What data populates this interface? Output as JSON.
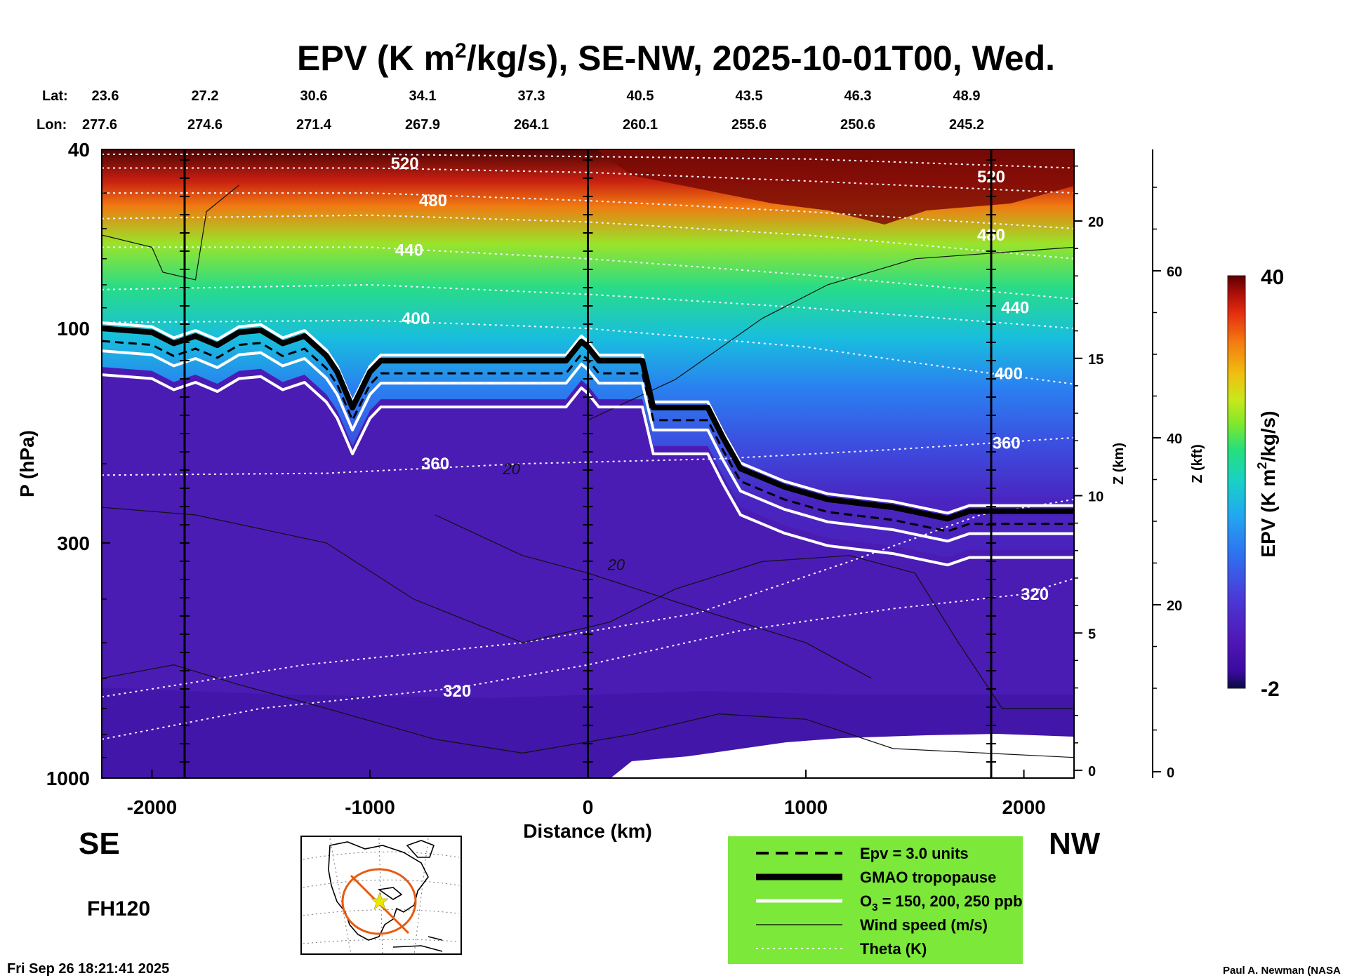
{
  "chart_data": {
    "type": "heatmap",
    "title_prefix": "EPV (K m",
    "title_sup": "2",
    "title_suffix": "/kg/s), SE-NW, 2025-10-01T00, Wed.",
    "lat_label": "Lat:",
    "lon_label": "Lon:",
    "lat": [
      "23.6",
      "27.2",
      "30.6",
      "34.1",
      "37.3",
      "40.5",
      "43.5",
      "46.3",
      "48.9"
    ],
    "lon": [
      "277.6",
      "274.6",
      "271.4",
      "267.9",
      "264.1",
      "260.1",
      "255.6",
      "250.6",
      "245.2"
    ],
    "xlabel": "Distance (km)",
    "ylabel": "P (hPa)",
    "xlim": [
      -2230,
      2230
    ],
    "ylim": [
      1000,
      40
    ],
    "yscale": "log",
    "x_ticks": [
      "-2000",
      "-1000",
      "0",
      "1000",
      "2000"
    ],
    "y_ticks": [
      "40",
      "100",
      "300",
      "1000"
    ],
    "z_km_label": "Z (km)",
    "z_km_ticks": [
      "0",
      "5",
      "10",
      "15",
      "20"
    ],
    "z_kft_label": "Z (kft)",
    "z_kft_ticks": [
      "0",
      "20",
      "40",
      "60"
    ],
    "colorbar": {
      "label_prefix": "EPV (K m",
      "label_sup": "2",
      "label_suffix": "/kg/s)",
      "min": "-2",
      "max": "40",
      "colors": [
        "#0a0a40",
        "#3a0aa0",
        "#5018b8",
        "#4a3ad8",
        "#2f6ff0",
        "#22a8f0",
        "#18d0c8",
        "#25e07a",
        "#7ee82c",
        "#c8e81a",
        "#f0c010",
        "#f47a10",
        "#e42c10",
        "#a80d08",
        "#5a0000"
      ]
    },
    "theta_levels": [
      {
        "value": "320",
        "x": -600,
        "p": 640
      },
      {
        "value": "320",
        "x": 2050,
        "p": 390
      },
      {
        "value": "360",
        "x": -700,
        "p": 200
      },
      {
        "value": "360",
        "x": 1920,
        "p": 180
      },
      {
        "value": "400",
        "x": -790,
        "p": 95
      },
      {
        "value": "400",
        "x": 1930,
        "p": 126
      },
      {
        "value": "440",
        "x": -820,
        "p": 67
      },
      {
        "value": "440",
        "x": 1960,
        "p": 90
      },
      {
        "value": "480",
        "x": -710,
        "p": 52
      },
      {
        "value": "480",
        "x": 1850,
        "p": 62
      },
      {
        "value": "520",
        "x": -840,
        "p": 43
      },
      {
        "value": "520",
        "x": 1850,
        "p": 46
      }
    ],
    "wind_labels": [
      {
        "value": "20",
        "x": -350,
        "p": 205
      },
      {
        "value": "20",
        "x": 130,
        "p": 335
      }
    ],
    "tropopause_p": [
      [
        -2230,
        100
      ],
      [
        -2000,
        102
      ],
      [
        -1900,
        108
      ],
      [
        -1800,
        104
      ],
      [
        -1700,
        109
      ],
      [
        -1600,
        102
      ],
      [
        -1500,
        101
      ],
      [
        -1400,
        108
      ],
      [
        -1300,
        104
      ],
      [
        -1200,
        115
      ],
      [
        -1150,
        125
      ],
      [
        -1080,
        150
      ],
      [
        -1000,
        125
      ],
      [
        -950,
        118
      ],
      [
        -800,
        118
      ],
      [
        -400,
        118
      ],
      [
        -100,
        118
      ],
      [
        -30,
        107
      ],
      [
        0,
        110
      ],
      [
        50,
        118
      ],
      [
        250,
        118
      ],
      [
        300,
        150
      ],
      [
        550,
        150
      ],
      [
        620,
        175
      ],
      [
        700,
        205
      ],
      [
        900,
        225
      ],
      [
        1100,
        240
      ],
      [
        1400,
        250
      ],
      [
        1650,
        265
      ],
      [
        1750,
        255
      ],
      [
        2000,
        255
      ],
      [
        2230,
        255
      ]
    ],
    "legend": [
      {
        "style": "dashed",
        "label": "Epv = 3.0 units"
      },
      {
        "style": "thick",
        "label": "GMAO tropopause"
      },
      {
        "style": "white",
        "label_prefix": "O",
        "label_sub": "3",
        "label_suffix": " = 150, 200, 250 ppb"
      },
      {
        "style": "thin",
        "label": "Wind speed (m/s)"
      },
      {
        "style": "dotted",
        "label": "Theta (K)"
      }
    ]
  },
  "left_dir": "SE",
  "right_dir": "NW",
  "forecast_hour": "FH120",
  "timestamp": "Fri Sep 26 18:21:41 2025",
  "credit": "Paul A. Newman (NASA"
}
